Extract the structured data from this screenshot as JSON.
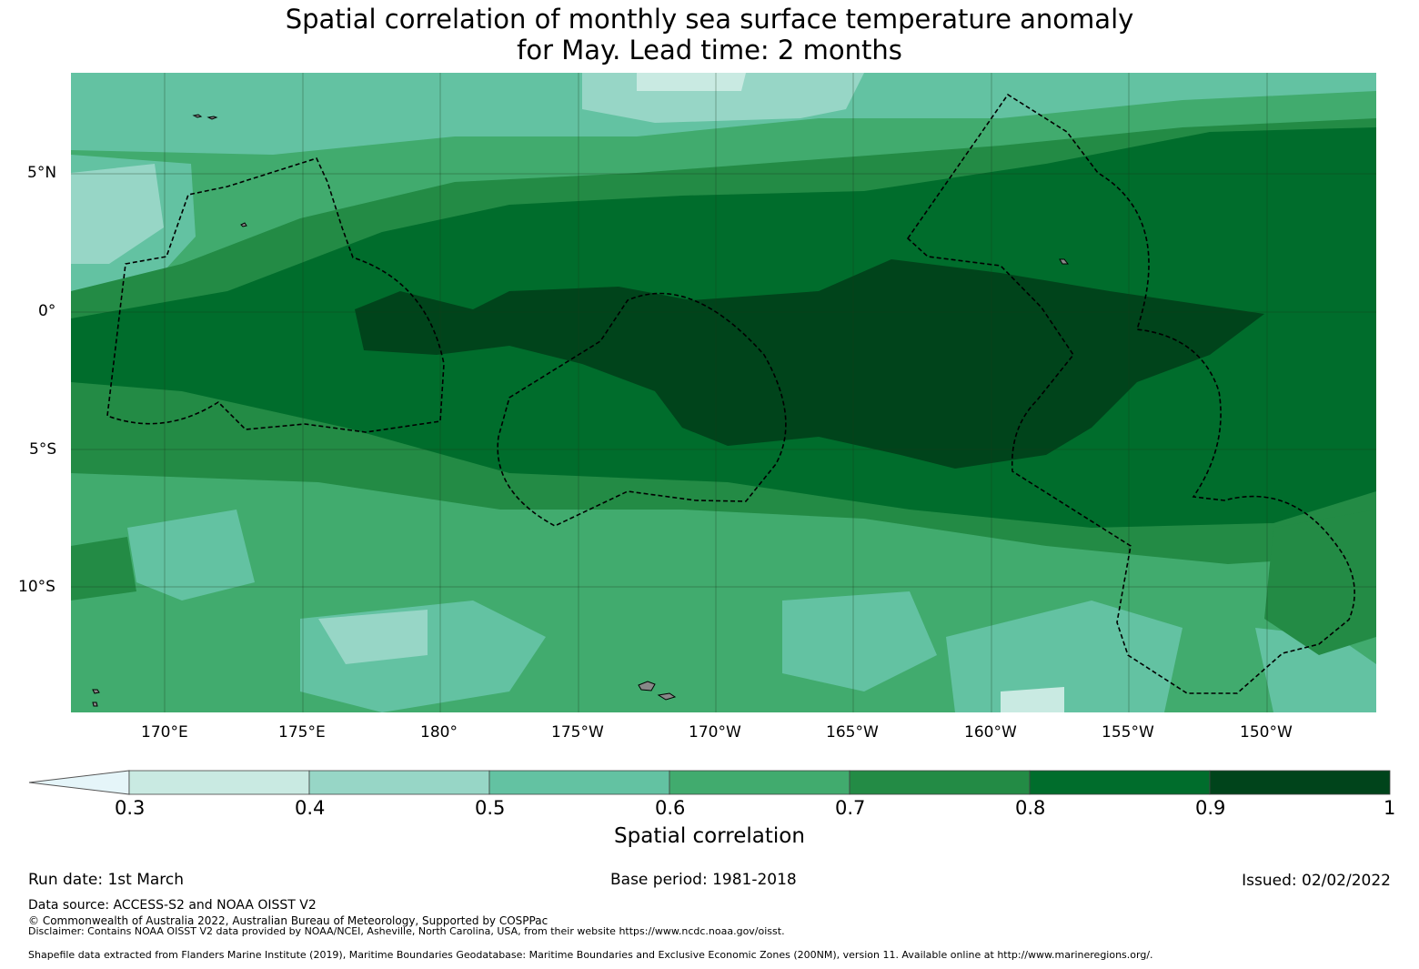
{
  "title": {
    "line1": "Spatial correlation of monthly sea surface temperature anomaly",
    "line2": "for May. Lead time: 2 months"
  },
  "map": {
    "lat_labels": [
      "5°N",
      "0°",
      "5°S",
      "10°S"
    ],
    "lon_labels": [
      "170°E",
      "175°E",
      "180°",
      "175°W",
      "170°W",
      "165°W",
      "160°W",
      "155°W",
      "150°W"
    ]
  },
  "colorbar": {
    "label": "Spatial correlation",
    "ticks": [
      "0.3",
      "0.4",
      "0.5",
      "0.6",
      "0.7",
      "0.8",
      "0.9",
      "1"
    ],
    "colors": [
      "#c9eae2",
      "#97d6c6",
      "#63c2a2",
      "#41ab6e",
      "#238b45",
      "#006d2c",
      "#00441b"
    ],
    "extend_color": "#e5f5f9"
  },
  "footer": {
    "run_date": "Run date: 1st March",
    "base_period": "Base period: 1981-2018",
    "issued": "Issued: 02/02/2022",
    "data_source": "Data source: ACCESS-S2 and NOAA OISST V2",
    "copyright": "© Commonwealth of Australia 2022, Australian Bureau of Meteorology, Supported by COSPPac",
    "disclaimer": "Disclaimer: Contains NOAA OISST V2 data provided by NOAA/NCEI, Asheville, North Carolina, USA, from their website https://www.ncdc.noaa.gov/oisst.",
    "shapefile": "Shapefile data extracted from Flanders Marine Institute (2019), Maritime Boundaries Geodatabase: Maritime Boundaries and Exclusive Economic Zones (200NM), version 11. Available online at http://www.marineregions.org/."
  }
}
